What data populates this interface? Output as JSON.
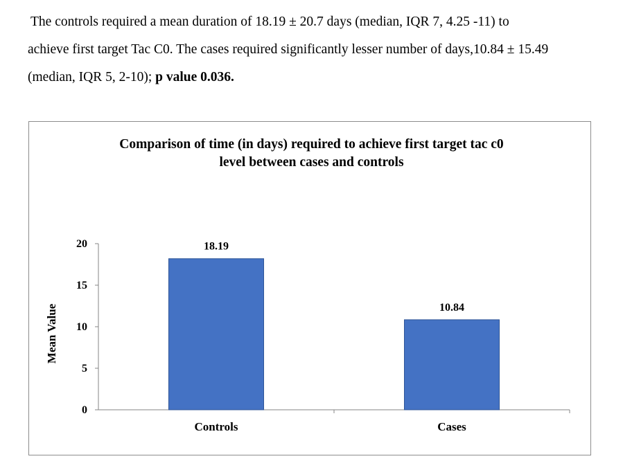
{
  "paragraph": {
    "line1": "The controls required a mean duration of 18.19 ± 20.7 days (median, IQR  7, 4.25 -11) to",
    "line2": "achieve first target Tac C0.  The cases required significantly lesser number of days,10.84 ± 15.49",
    "line3_normal": "(median, IQR  5, 2-10); ",
    "line3_bold": "p value 0.036."
  },
  "chart_data": {
    "type": "bar",
    "title_line1": "Comparison of time (in days) required to achieve first target tac c0",
    "title_line2": "level between cases and controls",
    "categories": [
      "Controls",
      "Cases"
    ],
    "values": [
      18.19,
      10.84
    ],
    "data_labels": [
      "18.19",
      "10.84"
    ],
    "xlabel": "",
    "ylabel": "Mean Value",
    "ylim": [
      0,
      20
    ],
    "yticks": [
      0,
      5,
      10,
      15,
      20
    ],
    "grid": false,
    "legend": "none",
    "bar_color": "#4472C4",
    "bar_edge_color": "#2F5597"
  }
}
